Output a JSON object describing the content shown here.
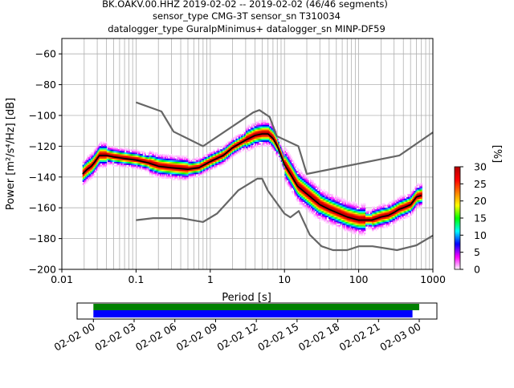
{
  "header": {
    "line1": "BK.OAKV.00.HHZ   2019-02-02 -- 2019-02-02  (46/46 segments)",
    "line2": "sensor_type CMG-3T sensor_sn T310034",
    "line3": "datalogger_type GuralpMinimus+ datalogger_sn MINP-DF59"
  },
  "chart_data": [
    {
      "type": "heatmap",
      "xlabel": "Period [s]",
      "ylabel": "Power [m²/s⁴/Hz] [dB]",
      "xscale": "log",
      "xlim": [
        0.01,
        1000
      ],
      "ylim": [
        -200,
        -50
      ],
      "x_ticks": [
        0.01,
        0.1,
        1,
        10,
        100,
        1000
      ],
      "x_tick_labels": [
        "0.01",
        "0.1",
        "1",
        "10",
        "100",
        "1000"
      ],
      "y_ticks": [
        -200,
        -180,
        -160,
        -140,
        -120,
        -100,
        -80,
        -60
      ],
      "y_tick_labels": [
        "−200",
        "−180",
        "−160",
        "−140",
        "−120",
        "−100",
        "−80",
        "−60"
      ],
      "grid": true,
      "colorbar": {
        "label": "[%]",
        "range": [
          0,
          30
        ],
        "ticks": [
          0,
          5,
          10,
          15,
          20,
          25,
          30
        ],
        "tick_labels": [
          "0",
          "5",
          "10",
          "15",
          "20",
          "25",
          "30"
        ],
        "colors": [
          "#ffffff",
          "#ff00ff",
          "#0000ff",
          "#00ffff",
          "#00ff00",
          "#ffff00",
          "#ff8000",
          "#ff0000",
          "#b40000"
        ]
      },
      "series": [
        {
          "name": "mode",
          "color": "#000000",
          "x": [
            0.019,
            0.022,
            0.025,
            0.028,
            0.032,
            0.04,
            0.05,
            0.07,
            0.1,
            0.15,
            0.2,
            0.3,
            0.5,
            0.7,
            1.0,
            1.5,
            2.0,
            3.0,
            4.0,
            5.0,
            6.0,
            7.0,
            8.0,
            10,
            12,
            15,
            20,
            30,
            40,
            50,
            70,
            100,
            150,
            200,
            250,
            300,
            350,
            400,
            500,
            600,
            700
          ],
          "y": [
            -138,
            -135,
            -133,
            -130,
            -126,
            -126,
            -127,
            -128,
            -129,
            -131,
            -133,
            -134,
            -135,
            -134,
            -130,
            -126,
            -121,
            -116,
            -113,
            -112,
            -112,
            -115,
            -120,
            -132,
            -138,
            -146,
            -151,
            -158,
            -161,
            -163,
            -166,
            -168,
            -168,
            -166,
            -165,
            -163,
            -161,
            -160,
            -158,
            -153,
            -152
          ]
        },
        {
          "name": "high noise model",
          "color": "#666666",
          "x": [
            0.1,
            0.22,
            0.32,
            0.8,
            3.8,
            4.6,
            6.3,
            7.9,
            15.4,
            20,
            354.8,
            1000
          ],
          "y": [
            -91.5,
            -97.4,
            -110.5,
            -120,
            -98,
            -96.5,
            -101,
            -113.5,
            -120,
            -138,
            -126,
            -111
          ]
        },
        {
          "name": "low noise model",
          "color": "#666666",
          "x": [
            0.1,
            0.17,
            0.4,
            0.8,
            1.24,
            2.4,
            4.3,
            5.0,
            6.0,
            10,
            12,
            15.6,
            21.9,
            31.6,
            45,
            70,
            101,
            154,
            328,
            600,
            1000
          ],
          "y": [
            -168,
            -166.7,
            -166.7,
            -169.2,
            -163.7,
            -148.6,
            -141.1,
            -141.1,
            -149,
            -163.8,
            -166.2,
            -162.1,
            -177.5,
            -185,
            -187.5,
            -187.5,
            -185,
            -185,
            -187.5,
            -184.4,
            -178
          ]
        }
      ]
    },
    {
      "type": "timeline",
      "x_tick_labels": [
        "02-02 00",
        "02-02 03",
        "02-02 06",
        "02-02 09",
        "02-02 12",
        "02-02 15",
        "02-02 18",
        "02-02 21",
        "02-03 00"
      ],
      "x_tick_hours": [
        0,
        3,
        6,
        9,
        12,
        15,
        18,
        21,
        24
      ],
      "xlim_hours": [
        -1.2,
        25.3
      ],
      "bars": [
        {
          "name": "data available",
          "color": "#008000",
          "start_hours": 0,
          "end_hours": 24.0
        },
        {
          "name": "used for PSD",
          "color": "#0000ff",
          "start_hours": 0,
          "end_hours": 23.5
        }
      ]
    }
  ]
}
